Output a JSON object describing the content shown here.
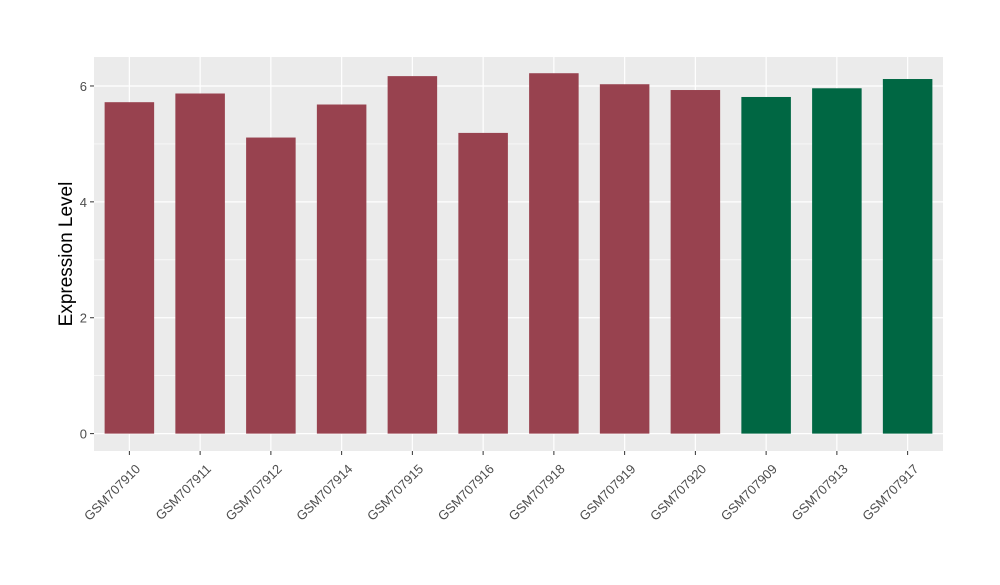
{
  "chart_data": {
    "type": "bar",
    "title": "",
    "xlabel": "",
    "ylabel": "Expression Level",
    "ylim": [
      -0.3,
      6.5
    ],
    "yticks": [
      0,
      2,
      4,
      6
    ],
    "grid": true,
    "categories": [
      "GSM707910",
      "GSM707911",
      "GSM707912",
      "GSM707914",
      "GSM707915",
      "GSM707916",
      "GSM707918",
      "GSM707919",
      "GSM707920",
      "GSM707909",
      "GSM707913",
      "GSM707917"
    ],
    "values": [
      5.72,
      5.87,
      5.11,
      5.68,
      6.17,
      5.19,
      6.22,
      6.03,
      5.93,
      5.81,
      5.96,
      6.12
    ],
    "bar_colors": [
      "#98424f",
      "#98424f",
      "#98424f",
      "#98424f",
      "#98424f",
      "#98424f",
      "#98424f",
      "#98424f",
      "#98424f",
      "#006743",
      "#006743",
      "#006743"
    ],
    "panel_background": "#ebebeb",
    "grid_color": "#ffffff"
  }
}
